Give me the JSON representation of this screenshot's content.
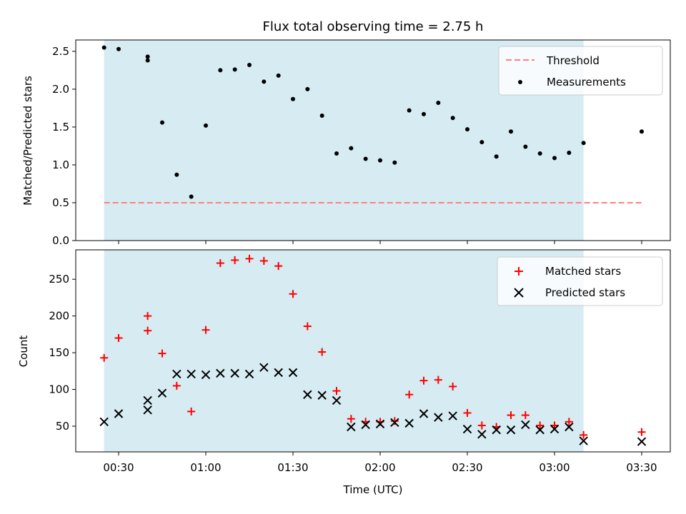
{
  "chart_data": {
    "type": "scatter",
    "title": "Flux total observing time = 2.75 h",
    "xlabel": "Time (UTC)",
    "x_ticks": [
      "00:30",
      "01:00",
      "01:30",
      "02:00",
      "02:30",
      "03:00",
      "03:30"
    ],
    "shaded_interval": {
      "start": "00:25",
      "end": "03:10",
      "color": "#add8e6"
    },
    "top_panel": {
      "ylabel": "Matched/Predicted stars",
      "ylim": [
        0,
        2.65
      ],
      "y_ticks": [
        "0.0",
        "0.5",
        "1.0",
        "1.5",
        "2.0",
        "2.5"
      ],
      "legend_position": "top-right",
      "threshold": {
        "name": "Threshold",
        "value": 0.5,
        "color": "#ff7f7f"
      },
      "series": [
        {
          "name": "Measurements",
          "marker": "dot",
          "color": "#000000",
          "x": [
            "00:25",
            "00:30",
            "00:40",
            "00:40",
            "00:45",
            "00:50",
            "00:55",
            "01:00",
            "01:05",
            "01:10",
            "01:15",
            "01:20",
            "01:25",
            "01:30",
            "01:35",
            "01:40",
            "01:45",
            "01:50",
            "01:55",
            "02:00",
            "02:05",
            "02:10",
            "02:15",
            "02:20",
            "02:25",
            "02:30",
            "02:35",
            "02:40",
            "02:45",
            "02:50",
            "02:55",
            "03:00",
            "03:05",
            "03:10",
            "03:30"
          ],
          "y": [
            2.55,
            2.53,
            2.43,
            2.38,
            1.56,
            0.87,
            0.58,
            1.52,
            2.25,
            2.26,
            2.32,
            2.1,
            2.18,
            1.87,
            2.0,
            1.65,
            1.15,
            1.22,
            1.08,
            1.06,
            1.03,
            1.72,
            1.67,
            1.82,
            1.62,
            1.47,
            1.3,
            1.11,
            1.44,
            1.24,
            1.15,
            1.09,
            1.16,
            1.29,
            1.44
          ]
        }
      ]
    },
    "bottom_panel": {
      "ylabel": "Count",
      "ylim": [
        15,
        290
      ],
      "y_ticks": [
        "50",
        "100",
        "150",
        "200",
        "250"
      ],
      "legend_position": "top-right",
      "x": [
        "00:25",
        "00:30",
        "00:40",
        "00:40",
        "00:45",
        "00:50",
        "00:55",
        "01:00",
        "01:05",
        "01:10",
        "01:15",
        "01:20",
        "01:25",
        "01:30",
        "01:35",
        "01:40",
        "01:45",
        "01:50",
        "01:55",
        "02:00",
        "02:05",
        "02:10",
        "02:15",
        "02:20",
        "02:25",
        "02:30",
        "02:35",
        "02:40",
        "02:45",
        "02:50",
        "02:55",
        "03:00",
        "03:05",
        "03:10",
        "03:30"
      ],
      "series": [
        {
          "name": "Matched stars",
          "marker": "plus",
          "color": "#ff0000",
          "values": [
            143,
            170,
            200,
            180,
            149,
            105,
            70,
            181,
            272,
            276,
            278,
            275,
            268,
            230,
            186,
            151,
            98,
            60,
            56,
            56,
            57,
            93,
            112,
            113,
            104,
            68,
            51,
            49,
            65,
            65,
            51,
            51,
            56,
            38,
            42
          ]
        },
        {
          "name": "Predicted stars",
          "marker": "x",
          "color": "#000000",
          "values": [
            56,
            67,
            85,
            72,
            95,
            121,
            121,
            120,
            122,
            122,
            121,
            130,
            123,
            123,
            93,
            92,
            85,
            49,
            52,
            53,
            55,
            54,
            67,
            62,
            64,
            46,
            39,
            45,
            45,
            52,
            45,
            46,
            49,
            30,
            29
          ]
        }
      ]
    }
  }
}
